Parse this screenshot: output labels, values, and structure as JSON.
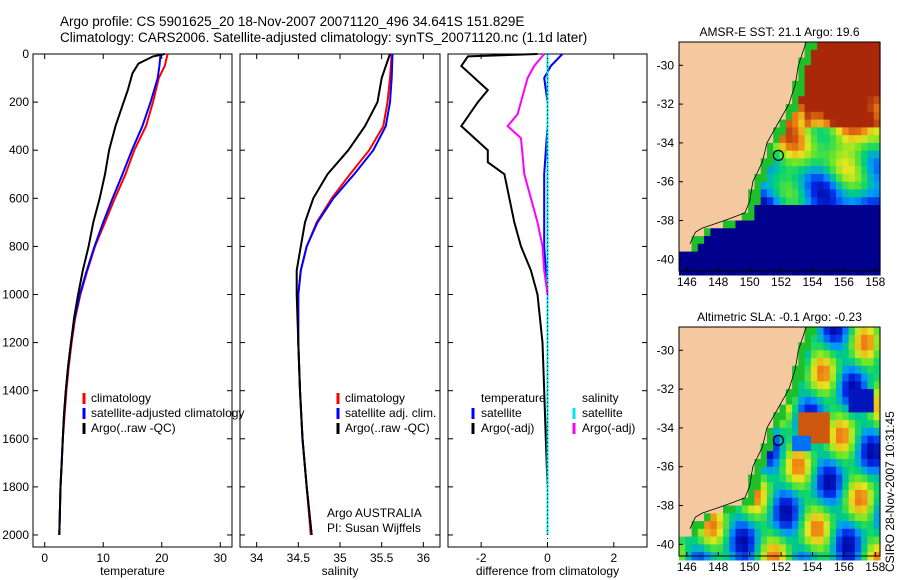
{
  "header": {
    "line1": "Argo profile: CS 5901625_20 18-Nov-2007 20071120_496 34.641S 151.829E",
    "line2": "Climatology: CARS2006. Satellite-adjusted climatology: synTS_20071120.nc (1.1d later)"
  },
  "side_label": "CSIRO 28-Nov-2007 10:31:45",
  "colors": {
    "climatology": "#ff0000",
    "satellite": "#0000ff",
    "argo": "#000000",
    "sal_satellite": "#00e5ee",
    "sal_argo": "#ff00ff",
    "land": "#f5c9a0"
  },
  "chart_data": [
    {
      "id": "temperature",
      "type": "line",
      "xlabel": "temperature",
      "ylabel": "",
      "xlim": [
        -2,
        32
      ],
      "ylim": [
        2050,
        0
      ],
      "xticks": [
        0,
        10,
        20,
        30
      ],
      "yticks": [
        0,
        200,
        400,
        600,
        800,
        1000,
        1200,
        1400,
        1600,
        1800,
        2000
      ],
      "legend": [
        "climatology",
        "satellite-adjusted climatology",
        "Argo(..raw -QC)"
      ],
      "series": [
        {
          "name": "climatology",
          "color": "#ff0000",
          "points": [
            [
              21,
              0
            ],
            [
              20.5,
              50
            ],
            [
              19.5,
              100
            ],
            [
              18.5,
              200
            ],
            [
              17.3,
              300
            ],
            [
              15.3,
              400
            ],
            [
              13.8,
              500
            ],
            [
              12,
              600
            ],
            [
              10.3,
              700
            ],
            [
              8.6,
              800
            ],
            [
              7.3,
              900
            ],
            [
              6.1,
              1000
            ],
            [
              5.2,
              1100
            ],
            [
              4.6,
              1200
            ],
            [
              4.1,
              1300
            ],
            [
              3.7,
              1400
            ],
            [
              3.4,
              1500
            ],
            [
              3.1,
              1600
            ],
            [
              2.9,
              1700
            ],
            [
              2.7,
              1800
            ],
            [
              2.6,
              1900
            ],
            [
              2.5,
              2000
            ]
          ]
        },
        {
          "name": "satellite-adjusted climatology",
          "color": "#0000ff",
          "points": [
            [
              19.8,
              0
            ],
            [
              19.6,
              50
            ],
            [
              19.3,
              100
            ],
            [
              18.1,
              200
            ],
            [
              16.7,
              300
            ],
            [
              14.9,
              400
            ],
            [
              13.3,
              500
            ],
            [
              11.6,
              600
            ],
            [
              10,
              700
            ],
            [
              8.5,
              800
            ],
            [
              7.2,
              900
            ],
            [
              6,
              1000
            ],
            [
              5.1,
              1100
            ],
            [
              4.5,
              1200
            ],
            [
              4,
              1300
            ],
            [
              3.6,
              1400
            ],
            [
              3.3,
              1500
            ],
            [
              3.1,
              1600
            ],
            [
              2.9,
              1700
            ],
            [
              2.7,
              1800
            ],
            [
              2.6,
              1900
            ],
            [
              2.5,
              2000
            ]
          ]
        },
        {
          "name": "Argo(..raw -QC)",
          "color": "#000000",
          "points": [
            [
              20.5,
              0
            ],
            [
              18.5,
              10
            ],
            [
              16,
              40
            ],
            [
              15,
              80
            ],
            [
              14.2,
              150
            ],
            [
              13.2,
              220
            ],
            [
              12.1,
              300
            ],
            [
              11,
              400
            ],
            [
              10.3,
              500
            ],
            [
              9.4,
              600
            ],
            [
              8.3,
              700
            ],
            [
              7.5,
              800
            ],
            [
              6.5,
              900
            ],
            [
              5.7,
              1000
            ],
            [
              5,
              1100
            ],
            [
              4.5,
              1200
            ],
            [
              4,
              1300
            ],
            [
              3.6,
              1400
            ],
            [
              3.3,
              1500
            ],
            [
              3.1,
              1600
            ],
            [
              2.9,
              1700
            ],
            [
              2.7,
              1800
            ],
            [
              2.6,
              1900
            ],
            [
              2.5,
              2000
            ]
          ]
        }
      ]
    },
    {
      "id": "salinity",
      "type": "line",
      "xlabel": "salinity",
      "xlim": [
        33.8,
        36.2
      ],
      "ylim": [
        2050,
        0
      ],
      "xticks": [
        34,
        34.5,
        35,
        35.5,
        36
      ],
      "legend": [
        "climatology",
        "satellite adj. clim.",
        "Argo(..raw -QC)"
      ],
      "annotation": [
        "Argo AUSTRALIA",
        "PI: Susan Wijffels"
      ],
      "series": [
        {
          "name": "climatology",
          "color": "#ff0000",
          "points": [
            [
              35.62,
              0
            ],
            [
              35.6,
              100
            ],
            [
              35.57,
              200
            ],
            [
              35.52,
              300
            ],
            [
              35.35,
              400
            ],
            [
              35.12,
              500
            ],
            [
              34.9,
              600
            ],
            [
              34.72,
              700
            ],
            [
              34.6,
              800
            ],
            [
              34.53,
              900
            ],
            [
              34.5,
              1000
            ],
            [
              34.5,
              1200
            ],
            [
              34.52,
              1400
            ],
            [
              34.55,
              1600
            ],
            [
              34.6,
              1800
            ],
            [
              34.65,
              2000
            ]
          ]
        },
        {
          "name": "satellite adj. clim.",
          "color": "#0000ff",
          "points": [
            [
              35.63,
              0
            ],
            [
              35.62,
              100
            ],
            [
              35.6,
              200
            ],
            [
              35.55,
              300
            ],
            [
              35.4,
              400
            ],
            [
              35.17,
              500
            ],
            [
              34.92,
              600
            ],
            [
              34.73,
              700
            ],
            [
              34.6,
              800
            ],
            [
              34.53,
              900
            ],
            [
              34.5,
              1000
            ],
            [
              34.5,
              1200
            ],
            [
              34.52,
              1400
            ],
            [
              34.55,
              1600
            ],
            [
              34.6,
              1800
            ],
            [
              34.66,
              2000
            ]
          ]
        },
        {
          "name": "Argo(..raw -QC)",
          "color": "#000000",
          "points": [
            [
              35.6,
              0
            ],
            [
              35.55,
              50
            ],
            [
              35.5,
              100
            ],
            [
              35.45,
              200
            ],
            [
              35.3,
              300
            ],
            [
              35.1,
              400
            ],
            [
              34.85,
              500
            ],
            [
              34.68,
              600
            ],
            [
              34.58,
              700
            ],
            [
              34.53,
              800
            ],
            [
              34.48,
              900
            ],
            [
              34.48,
              1000
            ],
            [
              34.5,
              1200
            ],
            [
              34.52,
              1400
            ],
            [
              34.55,
              1600
            ],
            [
              34.6,
              1800
            ],
            [
              34.66,
              2000
            ]
          ]
        }
      ]
    },
    {
      "id": "difference",
      "type": "line",
      "xlabel": "difference from climatology",
      "xlim": [
        -3,
        3
      ],
      "ylim": [
        2050,
        0
      ],
      "xticks": [
        -2,
        0,
        2
      ],
      "legend_temperature": [
        "temperature",
        "satellite",
        "Argo(-adj)"
      ],
      "legend_salinity": [
        "salinity",
        "satellite",
        "Argo(-adj)"
      ],
      "series": [
        {
          "name": "temperature satellite",
          "color": "#0000ff",
          "points": [
            [
              0.45,
              0
            ],
            [
              0.1,
              50
            ],
            [
              -0.1,
              100
            ],
            [
              0,
              200
            ],
            [
              0,
              300
            ],
            [
              -0.1,
              500
            ],
            [
              -0.1,
              800
            ],
            [
              0,
              1000
            ],
            [
              0,
              1200
            ],
            [
              0,
              2000
            ]
          ]
        },
        {
          "name": "temperature Argo(-adj)",
          "color": "#000000",
          "points": [
            [
              -0.3,
              0
            ],
            [
              -2.4,
              10
            ],
            [
              -2.6,
              50
            ],
            [
              -1.8,
              150
            ],
            [
              -2.1,
              200
            ],
            [
              -2.6,
              300
            ],
            [
              -1.8,
              400
            ],
            [
              -1.8,
              450
            ],
            [
              -1.3,
              500
            ],
            [
              -1,
              700
            ],
            [
              -0.8,
              800
            ],
            [
              -0.5,
              900
            ],
            [
              -0.3,
              1000
            ],
            [
              -0.15,
              1200
            ],
            [
              -0.1,
              1400
            ],
            [
              -0.05,
              1600
            ],
            [
              0,
              1800
            ],
            [
              0,
              1990
            ]
          ]
        },
        {
          "name": "salinity satellite",
          "color": "#00e5ee",
          "points": [
            [
              0,
              0
            ],
            [
              0,
              2000
            ]
          ]
        },
        {
          "name": "salinity Argo(-adj)",
          "color": "#ff00ff",
          "points": [
            [
              -0.1,
              0
            ],
            [
              -0.4,
              50
            ],
            [
              -0.6,
              100
            ],
            [
              -0.9,
              250
            ],
            [
              -1.2,
              300
            ],
            [
              -0.8,
              350
            ],
            [
              -0.7,
              500
            ],
            [
              -0.3,
              700
            ],
            [
              -0.15,
              800
            ],
            [
              -0.1,
              900
            ],
            [
              0,
              1000
            ]
          ]
        }
      ]
    },
    {
      "id": "sst_map",
      "type": "heatmap",
      "title": "AMSR-E SST: 21.1 Argo: 19.6",
      "xlim": [
        145.5,
        158.3
      ],
      "ylim": [
        -40.6,
        -28.8
      ],
      "xticks": [
        146,
        148,
        150,
        152,
        154,
        156,
        158
      ],
      "yticks": [
        -30,
        -32,
        -34,
        -36,
        -38,
        -40
      ],
      "marker": [
        151.829,
        -34.641
      ]
    },
    {
      "id": "sla_map",
      "type": "heatmap",
      "title": "Altimetric SLA: -0.1 Argo: -0.23",
      "xlim": [
        145.5,
        158.3
      ],
      "ylim": [
        -40.6,
        -28.8
      ],
      "xticks": [
        146,
        148,
        150,
        152,
        154,
        156,
        158
      ],
      "yticks": [
        -30,
        -32,
        -34,
        -36,
        -38,
        -40
      ],
      "marker": [
        151.829,
        -34.641
      ]
    }
  ]
}
